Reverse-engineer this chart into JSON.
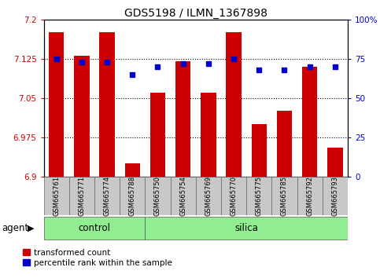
{
  "title": "GDS5198 / ILMN_1367898",
  "samples": [
    "GSM665761",
    "GSM665771",
    "GSM665774",
    "GSM665788",
    "GSM665750",
    "GSM665754",
    "GSM665769",
    "GSM665770",
    "GSM665775",
    "GSM665785",
    "GSM665792",
    "GSM665793"
  ],
  "red_values": [
    7.175,
    7.13,
    7.175,
    6.925,
    7.06,
    7.12,
    7.06,
    7.175,
    7.0,
    7.025,
    7.11,
    6.955
  ],
  "blue_values": [
    75,
    73,
    73,
    65,
    70,
    72,
    72,
    75,
    68,
    68,
    70,
    70
  ],
  "ylim_left": [
    6.9,
    7.2
  ],
  "ylim_right": [
    0,
    100
  ],
  "yticks_left": [
    6.9,
    6.975,
    7.05,
    7.125,
    7.2
  ],
  "yticks_right": [
    0,
    25,
    50,
    75,
    100
  ],
  "ytick_labels_left": [
    "6.9",
    "6.975",
    "7.05",
    "7.125",
    "7.2"
  ],
  "ytick_labels_right": [
    "0",
    "25",
    "50",
    "75",
    "100%"
  ],
  "control_indices": [
    0,
    1,
    2,
    3
  ],
  "silica_indices": [
    4,
    5,
    6,
    7,
    8,
    9,
    10,
    11
  ],
  "control_color": "#90EE90",
  "silica_color": "#90EE90",
  "bar_color": "#CC0000",
  "dot_color": "#0000CC",
  "background_color": "#ffffff",
  "plot_bg_color": "#ffffff",
  "label_bg_color": "#C8C8C8",
  "agent_label": "agent",
  "control_label": "control",
  "silica_label": "silica",
  "legend_red": "transformed count",
  "legend_blue": "percentile rank within the sample"
}
